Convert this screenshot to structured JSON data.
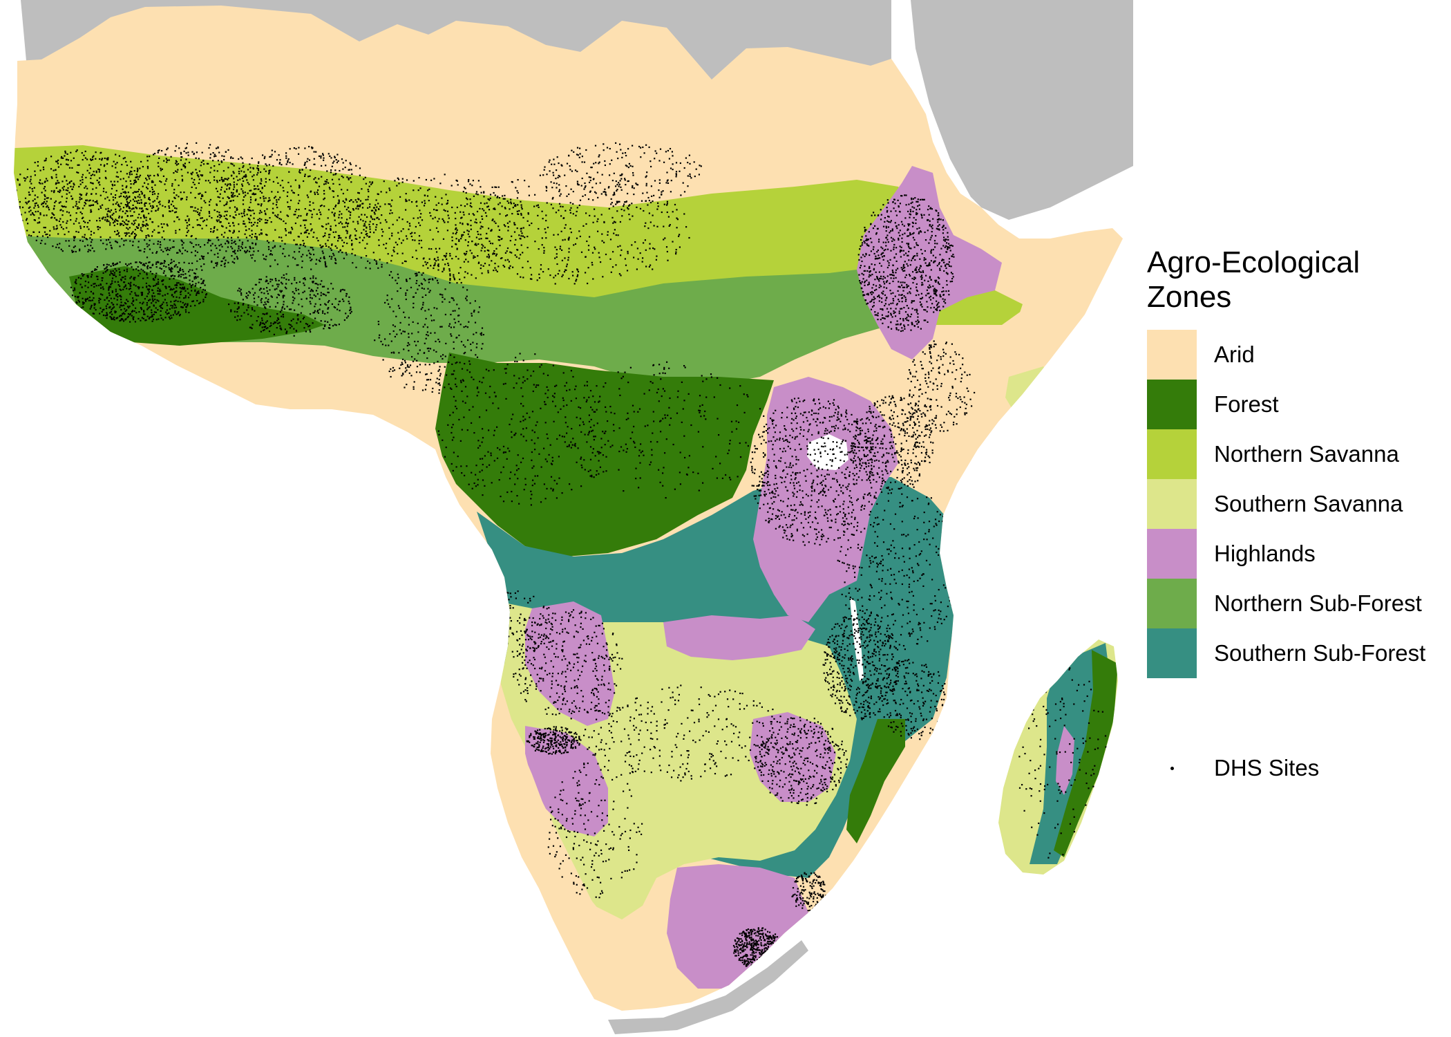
{
  "colors": {
    "background_land": "#bebebe",
    "sea": "#ffffff",
    "arid": "#fde0b1",
    "forest": "#347c0a",
    "northern_savanna": "#b5d23a",
    "southern_savanna": "#dde68b",
    "highlands": "#c88ec8",
    "northern_sub_forest": "#6eac4b",
    "southern_sub_forest": "#368f82",
    "dhs_site": "#000000"
  },
  "legend": {
    "title_line1": "Agro-Ecological",
    "title_line2": "Zones",
    "items": [
      {
        "label": "Arid",
        "color": "#fde0b1"
      },
      {
        "label": "Forest",
        "color": "#347c0a"
      },
      {
        "label": "Northern Savanna",
        "color": "#b5d23a"
      },
      {
        "label": "Southern Savanna",
        "color": "#dde68b"
      },
      {
        "label": "Highlands",
        "color": "#c88ec8"
      },
      {
        "label": "Northern Sub-Forest",
        "color": "#6eac4b"
      },
      {
        "label": "Southern Sub-Forest",
        "color": "#368f82"
      }
    ],
    "points_label": "DHS Sites"
  }
}
